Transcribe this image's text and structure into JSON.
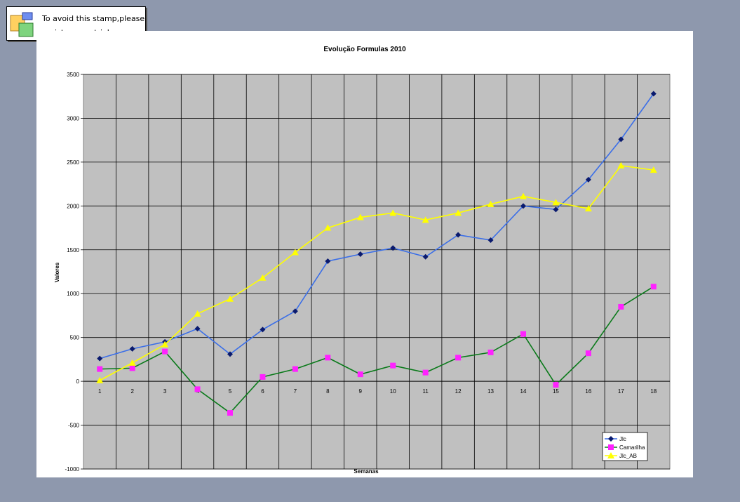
{
  "stamp": {
    "line1": "To avoid this stamp,please",
    "line2": "register your trial copy"
  },
  "colors": {
    "page_background": "#8e98ad",
    "plot_background": "#c0c0c0",
    "jlc_line": "#3a6ee8",
    "jlc_marker": "#0a1a6e",
    "camarilha_line": "#0a7a1a",
    "camarilha_marker": "#ff22ff",
    "jlc_ab_line": "#ffff00",
    "jlc_ab_marker": "#ffff00"
  },
  "chart_data": {
    "type": "line",
    "title": "Evolução Formulas 2010",
    "xlabel": "Semanas",
    "ylabel": "Valores",
    "categories": [
      "1",
      "2",
      "3",
      "4",
      "5",
      "6",
      "7",
      "8",
      "9",
      "10",
      "11",
      "12",
      "13",
      "14",
      "15",
      "16",
      "17",
      "18"
    ],
    "ylim": [
      -1000,
      3500
    ],
    "yticks": [
      -1000,
      -500,
      0,
      500,
      1000,
      1500,
      2000,
      2500,
      3000,
      3500
    ],
    "grid": true,
    "legend_position": "bottom-right",
    "series": [
      {
        "name": "Jlc",
        "marker": "diamond",
        "values": [
          260,
          370,
          450,
          600,
          310,
          590,
          800,
          1370,
          1450,
          1520,
          1420,
          1670,
          1610,
          2000,
          1960,
          2300,
          2760,
          3280
        ]
      },
      {
        "name": "Camarilha",
        "marker": "square",
        "values": [
          140,
          150,
          340,
          -90,
          -360,
          50,
          140,
          270,
          80,
          180,
          100,
          270,
          330,
          540,
          -40,
          320,
          850,
          1080
        ]
      },
      {
        "name": "Jlc_AB",
        "marker": "triangle",
        "values": [
          10,
          210,
          420,
          770,
          940,
          1180,
          1470,
          1750,
          1870,
          1920,
          1840,
          1920,
          2020,
          2110,
          2040,
          1970,
          2460,
          2410
        ]
      }
    ]
  }
}
